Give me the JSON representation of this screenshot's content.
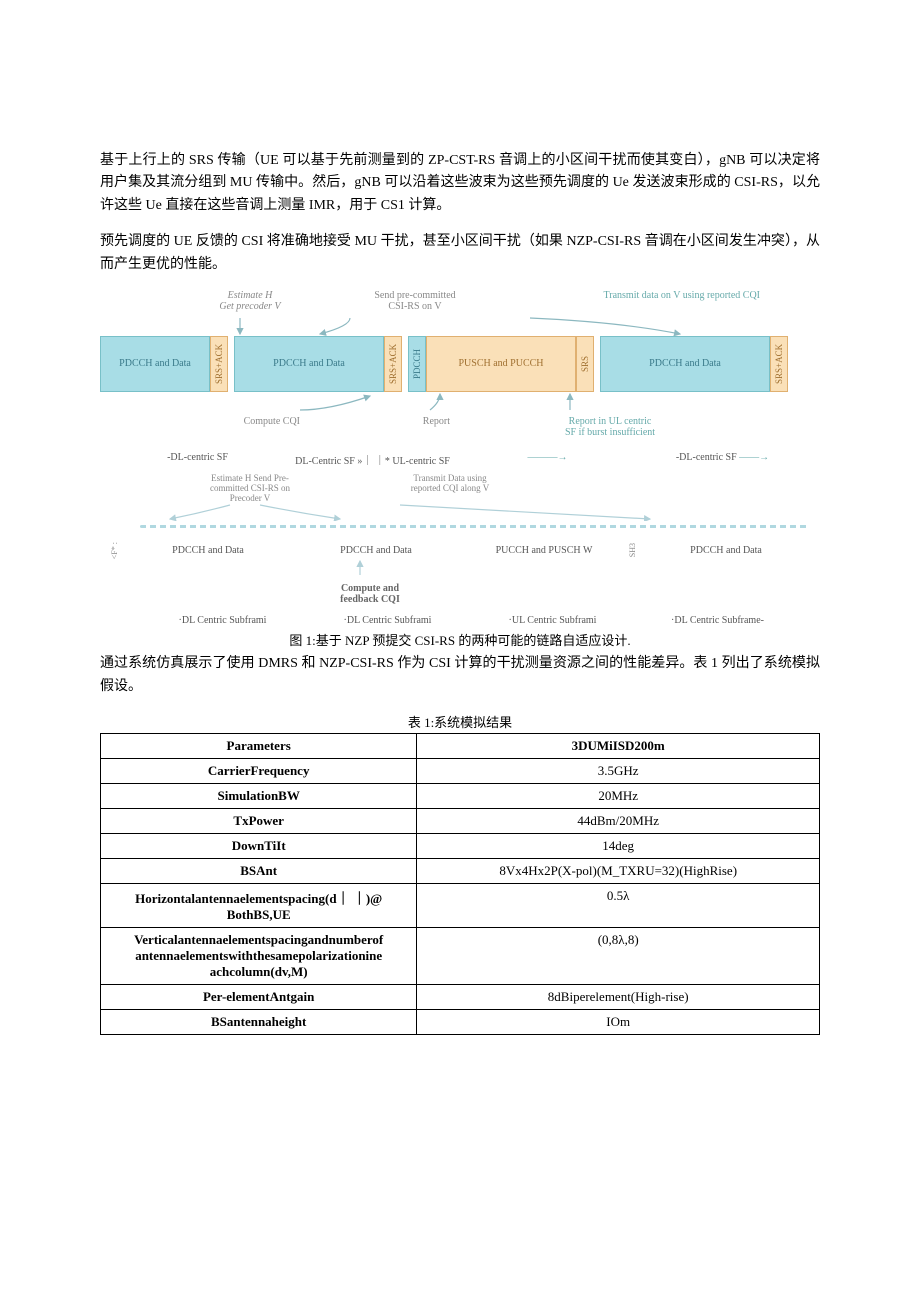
{
  "paragraphs": {
    "p1": "基于上行上的 SRS 传输（UE 可以基于先前测量到的 ZP-CST-RS 音调上的小区间干扰而使其变白），gNB 可以决定将用户集及其流分组到 MU 传输中。然后，gNB 可以沿着这些波束为这些预先调度的 Ue 发送波束形成的 CSI-RS，以允许这些 Ue 直接在这些音调上测量 IMR，用于 CS1 计算。",
    "p2": "预先调度的 UE 反馈的 CSI 将准确地接受 MU 干扰，甚至小区间干扰（如果 NZP-CSI-RS 音调在小区间发生冲突），从而产生更优的性能。",
    "p3": "通过系统仿真展示了使用 DMRS 和 NZP-CSI-RS 作为 CSI 计算的干扰测量资源之间的性能差异。表 1 列出了系统模拟假设。"
  },
  "diagram": {
    "top": {
      "estimate": "Estimate H\nGet precoder V",
      "sendpre": "Send pre-committed\nCSI-RS on V",
      "transmit": "Transmit data on V using reported CQI"
    },
    "blocks": {
      "pdcch_data": "PDCCH and Data",
      "srs_ack": "SRS+ACK",
      "pdcch_v": "PDCCH",
      "pusch_pucch": "PUSCH and PUCCH",
      "srs": "SRS"
    },
    "bot": {
      "compute_cqi": "Compute CQI",
      "report": "Report",
      "report_ul": "Report in UL centric\nSF if burst insufficient"
    },
    "sf_labels": {
      "dl": "-DL-centric SF",
      "dl2": "DL-Centric SF »｜ ｜* UL-centric SF",
      "dl3": "-DL-centric SF"
    },
    "sub": {
      "estimate2": "Estimate H Send Pre-\ncommitted CSI-RS on\nPrecoder V",
      "transmit2": "Transmit Data using\nreported CQI along V"
    },
    "mid": {
      "sf1": "<F* :",
      "cell1": "PDCCH and Data",
      "cell2": "PDCCH and Data",
      "cell3": "PUCCH and PUSCH W",
      "sf2": "SH3",
      "cell4": "PDCCH and Data"
    },
    "compute_fb": "Compute and\nfeedback CQI",
    "sf2_labels": {
      "a": "·DL Centric Subframi",
      "b": "·DL Centric Subframi",
      "c": "·UL Centric Subframi",
      "d": "·DL Centric Subframe-"
    },
    "caption": "图 1:基于 NZP 预提交 CSI-RS 的两种可能的链路自适应设计.",
    "colors": {
      "block_blue_bg": "#a8dde6",
      "block_blue_border": "#78c0c8",
      "block_orange_bg": "#fae0b8",
      "block_orange_border": "#e0b070",
      "arrow_color": "#8cb8c0"
    }
  },
  "table": {
    "caption": "表 1:系统模拟结果",
    "header": {
      "param": "Parameters",
      "val": "3DUMiISD200m"
    },
    "rows": [
      {
        "param": "CarrierFrequency",
        "val": "3.5GHz"
      },
      {
        "param": "SimulationBW",
        "val": "20MHz"
      },
      {
        "param": "TxPower",
        "val": "44dBm/20MHz"
      },
      {
        "param": "DownTiIt",
        "val": "14deg"
      },
      {
        "param": "BSAnt",
        "val": "8Vx4Hx2P(X-pol)(M_TXRU=32)(HighRise)"
      },
      {
        "param": "Horizontalantennaelementspacing(d｜ ｜)@\nBothBS,UE",
        "val": "0.5λ",
        "top": true
      },
      {
        "param": "Verticalantennaelementspacingandnumberof\nantennaelementswiththesamepolarizationine\nachcolumn(dv,M)",
        "val": "(0,8λ,8)",
        "top": true
      },
      {
        "param": "Per-elementAntgain",
        "val": "8dBiperelement(High-rise)"
      },
      {
        "param": "BSantennaheight",
        "val": "IOm"
      }
    ]
  }
}
